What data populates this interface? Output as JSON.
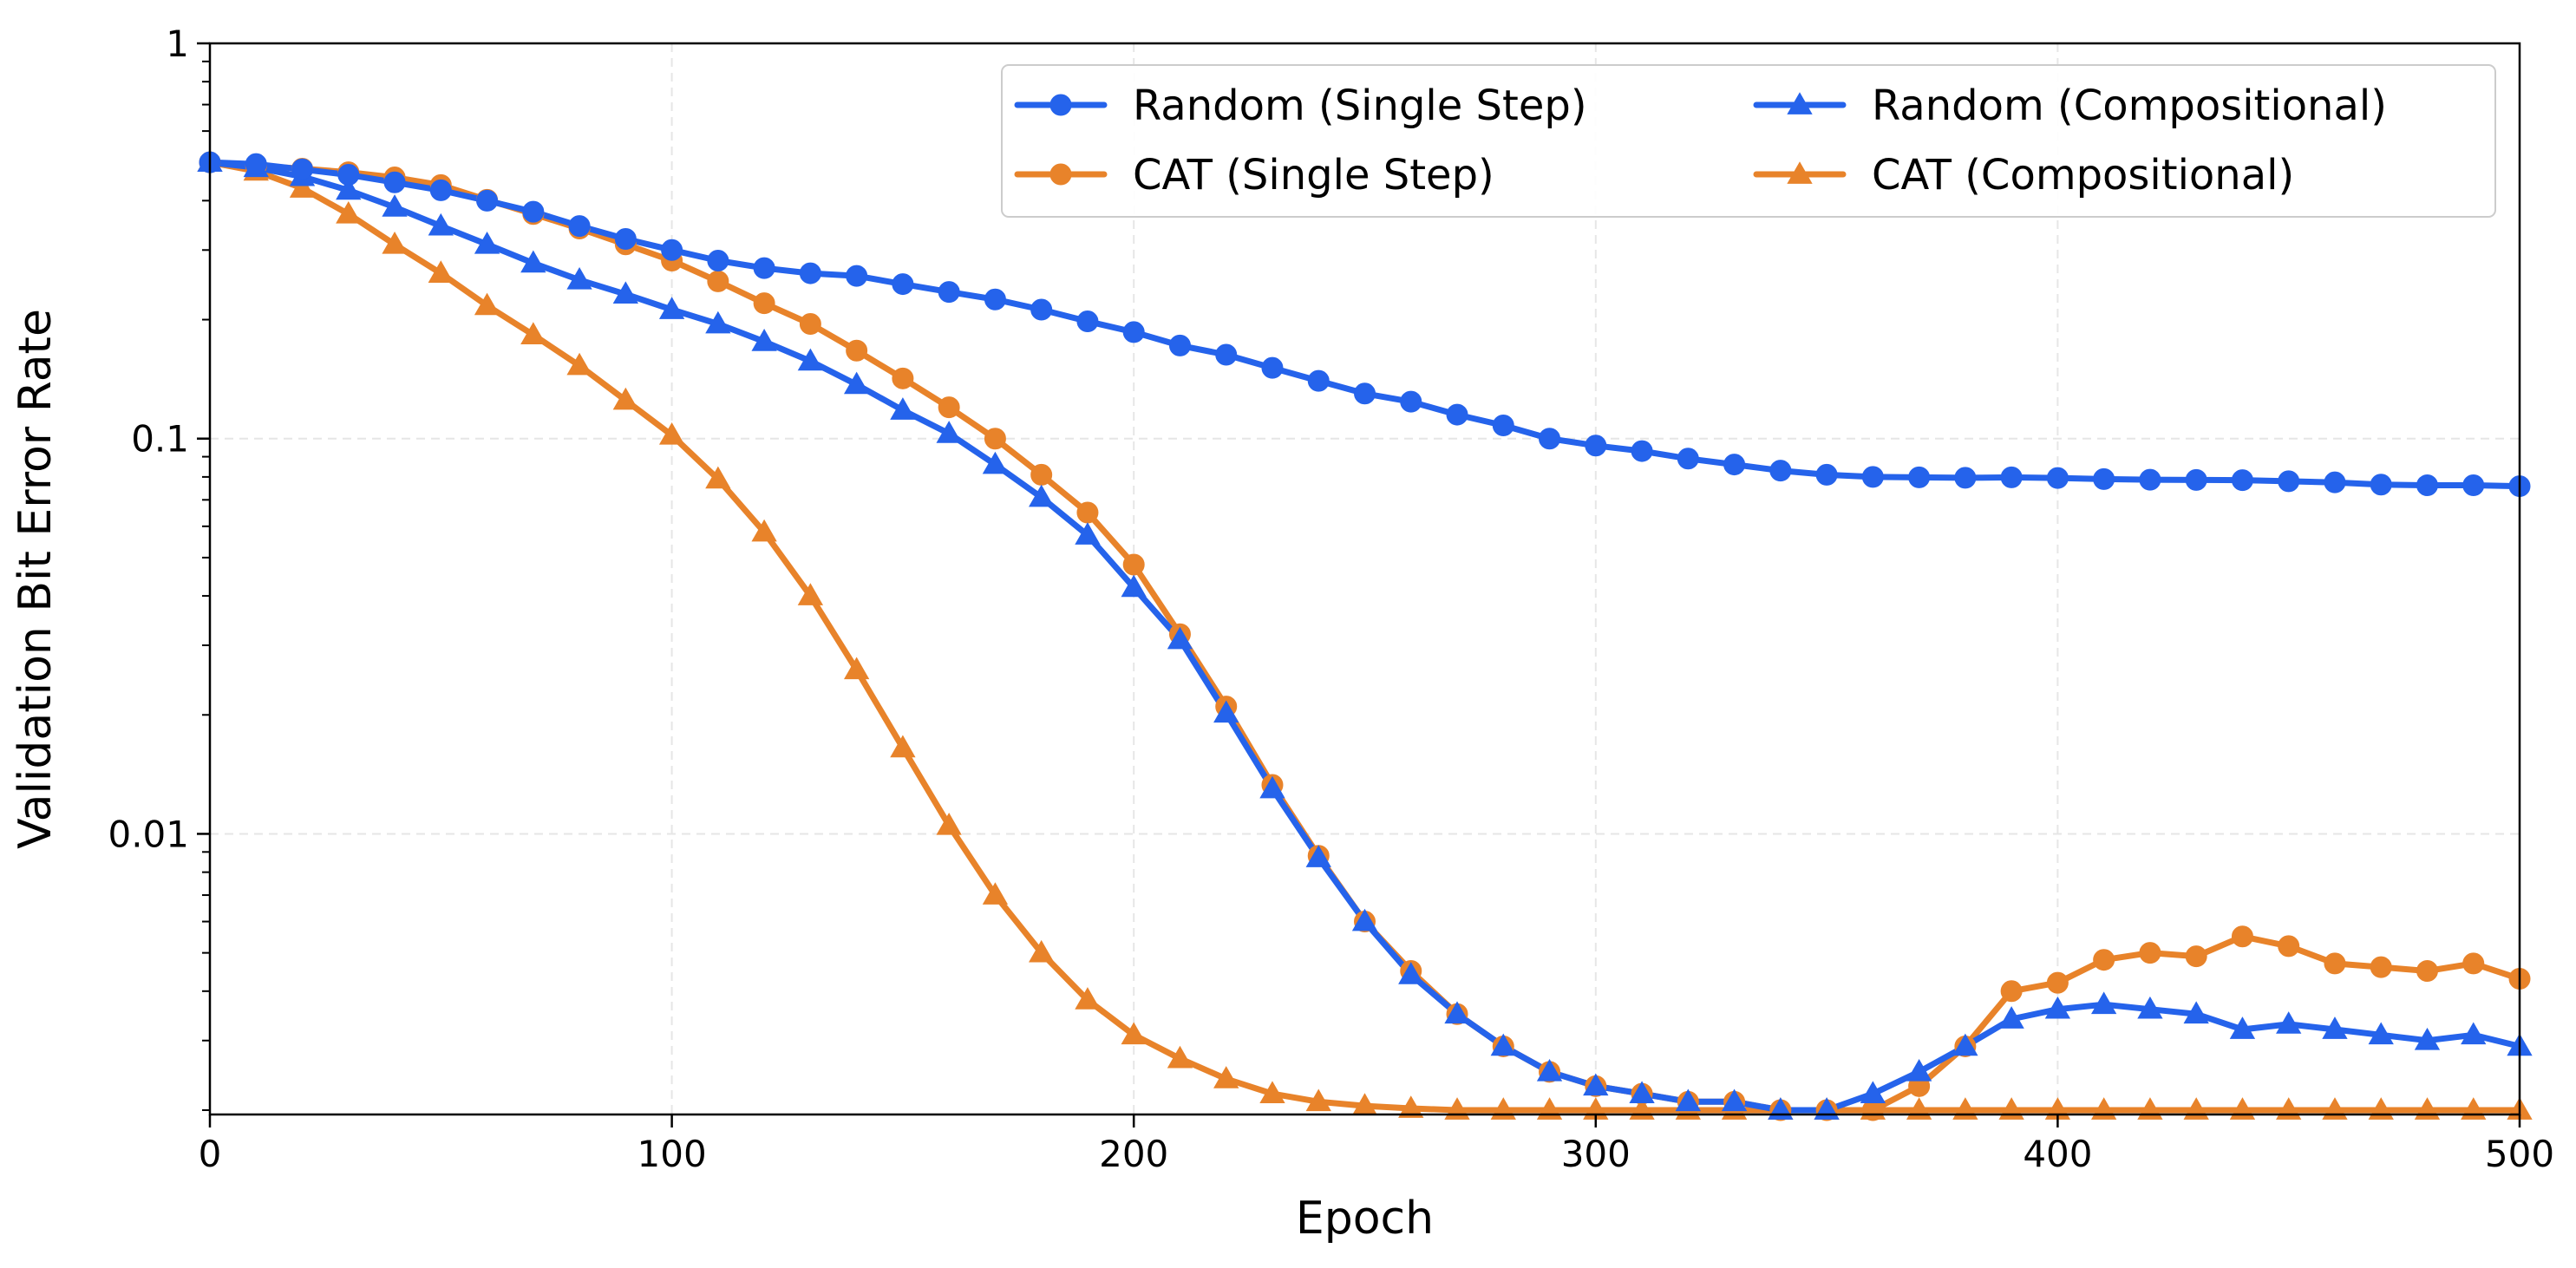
{
  "chart_data": {
    "type": "line",
    "title": "",
    "xlabel": "Epoch",
    "ylabel": "Validation Bit Error Rate",
    "xlim": [
      0,
      500
    ],
    "ylim": [
      0.00195,
      1
    ],
    "yscale": "log",
    "xticks": [
      0,
      100,
      200,
      300,
      400,
      500
    ],
    "xtick_labels": [
      "0",
      "100",
      "200",
      "300",
      "400",
      "500"
    ],
    "yticks": [
      0.01,
      0.1,
      1
    ],
    "ytick_labels": [
      "0.01",
      "0.1",
      "1"
    ],
    "grid": true,
    "legend": {
      "placement": "top-right",
      "columns": 2
    },
    "x": [
      0,
      10,
      20,
      30,
      40,
      50,
      60,
      70,
      80,
      90,
      100,
      110,
      120,
      130,
      140,
      150,
      160,
      170,
      180,
      190,
      200,
      210,
      220,
      230,
      240,
      250,
      260,
      270,
      280,
      290,
      300,
      310,
      320,
      330,
      340,
      350,
      360,
      370,
      380,
      390,
      400,
      410,
      420,
      430,
      440,
      450,
      460,
      470,
      480,
      490,
      500
    ],
    "series": [
      {
        "name": "Random (Single Step)",
        "color": "#2563eb",
        "marker": "circle",
        "values": [
          0.5,
          0.495,
          0.48,
          0.465,
          0.445,
          0.425,
          0.4,
          0.375,
          0.345,
          0.32,
          0.3,
          0.282,
          0.27,
          0.262,
          0.258,
          0.246,
          0.235,
          0.225,
          0.212,
          0.198,
          0.186,
          0.172,
          0.163,
          0.151,
          0.14,
          0.13,
          0.124,
          0.115,
          0.108,
          0.1,
          0.096,
          0.093,
          0.089,
          0.086,
          0.083,
          0.081,
          0.08,
          0.0798,
          0.0796,
          0.0798,
          0.0795,
          0.079,
          0.0787,
          0.0786,
          0.0785,
          0.078,
          0.0775,
          0.0765,
          0.0762,
          0.0762,
          0.0758
        ]
      },
      {
        "name": "CAT (Single Step)",
        "color": "#e8832a",
        "marker": "circle",
        "values": [
          0.5,
          0.49,
          0.482,
          0.472,
          0.458,
          0.438,
          0.402,
          0.37,
          0.34,
          0.31,
          0.282,
          0.25,
          0.22,
          0.195,
          0.167,
          0.142,
          0.12,
          0.1,
          0.081,
          0.065,
          0.048,
          0.032,
          0.021,
          0.0133,
          0.0088,
          0.006,
          0.0045,
          0.0035,
          0.0029,
          0.0025,
          0.0023,
          0.0022,
          0.0021,
          0.0021,
          0.002,
          0.002,
          0.002,
          0.0023,
          0.0029,
          0.004,
          0.0042,
          0.0048,
          0.005,
          0.0049,
          0.0055,
          0.0052,
          0.0047,
          0.0046,
          0.0045,
          0.0047,
          0.0043
        ]
      },
      {
        "name": "Random (Compositional)",
        "color": "#2563eb",
        "marker": "triangle",
        "values": [
          0.5,
          0.485,
          0.46,
          0.425,
          0.385,
          0.345,
          0.31,
          0.278,
          0.252,
          0.232,
          0.212,
          0.195,
          0.176,
          0.157,
          0.137,
          0.118,
          0.103,
          0.086,
          0.071,
          0.057,
          0.042,
          0.031,
          0.0202,
          0.013,
          0.0087,
          0.006,
          0.0044,
          0.0035,
          0.0029,
          0.0025,
          0.0023,
          0.0022,
          0.0021,
          0.0021,
          0.002,
          0.002,
          0.0022,
          0.0025,
          0.0029,
          0.0034,
          0.0036,
          0.0037,
          0.0036,
          0.0035,
          0.0032,
          0.0033,
          0.0032,
          0.0031,
          0.003,
          0.0031,
          0.0029
        ]
      },
      {
        "name": "CAT (Compositional)",
        "color": "#e8832a",
        "marker": "triangle",
        "values": [
          0.5,
          0.475,
          0.43,
          0.37,
          0.31,
          0.262,
          0.217,
          0.183,
          0.153,
          0.125,
          0.102,
          0.079,
          0.058,
          0.04,
          0.026,
          0.0165,
          0.0105,
          0.007,
          0.005,
          0.0038,
          0.0031,
          0.0027,
          0.0024,
          0.0022,
          0.0021,
          0.00205,
          0.00202,
          0.002,
          0.002,
          0.002,
          0.002,
          0.002,
          0.002,
          0.002,
          0.002,
          0.002,
          0.002,
          0.002,
          0.002,
          0.002,
          0.002,
          0.002,
          0.002,
          0.002,
          0.002,
          0.002,
          0.002,
          0.002,
          0.002,
          0.002,
          0.002
        ]
      }
    ]
  }
}
